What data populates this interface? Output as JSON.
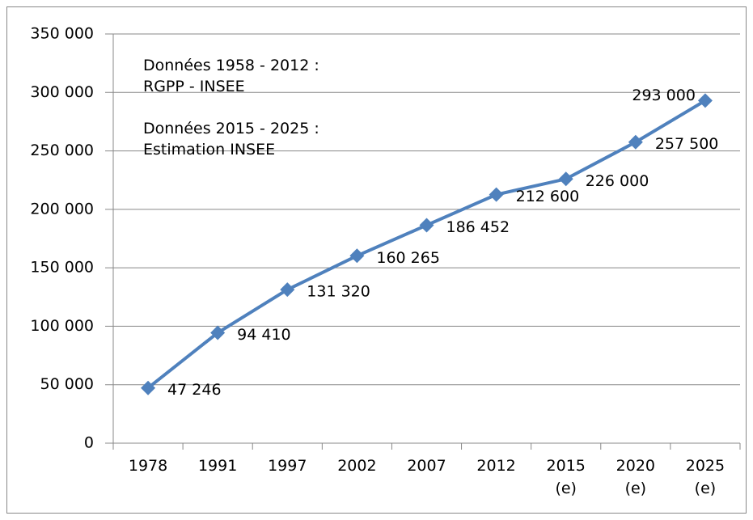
{
  "chart_data": {
    "type": "line",
    "annotation": [
      "Données 1958 - 2012 :  RGPP - INSEE",
      "Données 2015 - 2025  : Estimation INSEE"
    ],
    "categories": [
      "1978",
      "1991",
      "1997",
      "2002",
      "2007",
      "2012",
      "2015 (e)",
      "2020 (e)",
      "2025 (e)"
    ],
    "values": [
      47246,
      94410,
      131320,
      160265,
      186452,
      212600,
      226000,
      257500,
      293000
    ],
    "value_labels": [
      "47 246",
      "94 410",
      "131 320",
      "160 265",
      "186 452",
      "212 600",
      "226 000",
      "257 500",
      "293 000"
    ],
    "color": "#4f81bd",
    "ylim": [
      0,
      350000
    ],
    "yticks": [
      0,
      {
        "value": 50000,
        "label": "50 000"
      },
      {
        "value": 100000,
        "label": "100 000"
      },
      {
        "value": 150000,
        "label": "150 000"
      },
      {
        "value": 200000,
        "label": "200 000"
      },
      {
        "value": 250000,
        "label": "250 000"
      },
      {
        "value": 300000,
        "label": "300 000"
      },
      {
        "value": 350000,
        "label": "350 000"
      }
    ],
    "grid": true
  }
}
